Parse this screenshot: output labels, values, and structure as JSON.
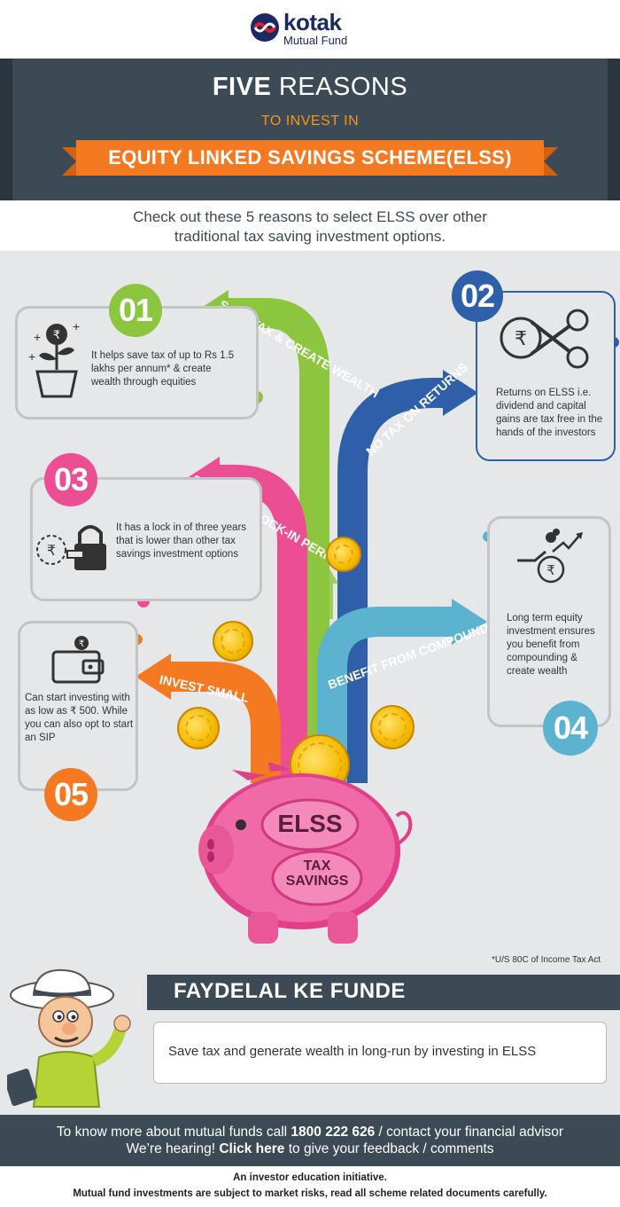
{
  "brand": {
    "name": "kotak",
    "sub": "Mutual Fund"
  },
  "header": {
    "title_bold": "FIVE",
    "title_rest": " REASONS",
    "subtitle": "TO INVEST IN",
    "ribbon": "EQUITY LINKED SAVINGS SCHEME(ELSS)"
  },
  "intro": {
    "line1": "Check out these 5 reasons to select ELSS over other",
    "line2": "traditional tax saving investment options."
  },
  "reasons": [
    {
      "num": "01",
      "label": "SAVE TAX & CREATE WEALTH",
      "desc": "It helps save tax of up to Rs 1.5 lakhs per annum* & create wealth through equities",
      "color": "#8cc63f"
    },
    {
      "num": "02",
      "label": "NO TAX ON RETURNS",
      "desc": "Returns on ELSS i.e. dividend and capital gains are tax free in the hands of the investors",
      "color": "#2e5fa8"
    },
    {
      "num": "03",
      "label": "SHORTEST LOCK-IN PERIOD",
      "desc": "It has a lock in of three years that is lower than other tax savings investment options",
      "color": "#ec4e94"
    },
    {
      "num": "04",
      "label": "BENEFIT FROM COMPOUNDING",
      "desc": "Long term equity investment ensures you benefit from compounding & create wealth",
      "color": "#5bb3cf"
    },
    {
      "num": "05",
      "label": "INVEST SMALL",
      "desc": "Can start investing with as low as ₹ 500. While you can also opt to start an SIP",
      "color": "#f47920"
    }
  ],
  "piggy": {
    "label1": "ELSS",
    "label2": "TAX",
    "label3": "SAVINGS"
  },
  "footnote": "*U/S 80C of Income Tax Act",
  "faydelal": {
    "title": "FAYDELAL KE FUNDE",
    "tip": "Save tax and generate wealth in long-run by investing in ELSS"
  },
  "footer": {
    "line1_a": "To know more about mutual funds call ",
    "line1_b": "1800 222 626",
    "line1_c": " / contact your financial advisor",
    "line2_a": "We’re hearing! ",
    "line2_b": "Click here",
    "line2_c": " to give your feedback / comments"
  },
  "disclaimer": {
    "line1": "An investor education initiative.",
    "line2": "Mutual fund investments are subject to market risks, read all scheme related documents carefully."
  }
}
